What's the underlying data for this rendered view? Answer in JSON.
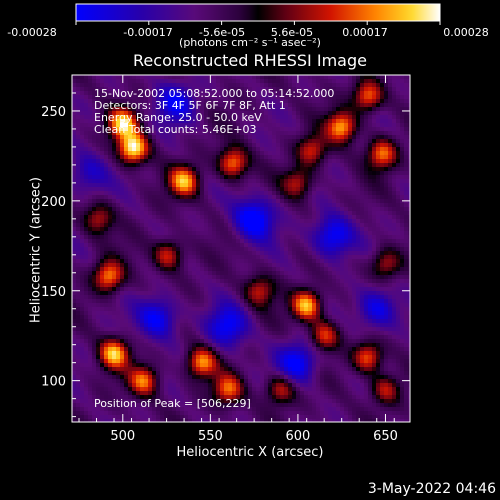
{
  "title": "Reconstructed RHESSI Image",
  "date_stamp": "3-May-2022 04:46",
  "annotations": {
    "time_range": "15-Nov-2002 05:08:52.000 to 05:14:52.000",
    "detectors": "Detectors: 3F 4F 5F 6F 7F 8F, Att 1",
    "energy_range": "Energy Range: 25.0 - 50.0 keV",
    "algorithm": "Clean     Total counts: 5.46E+03",
    "peak": "Position of Peak = [506,229]"
  },
  "colorbar": {
    "title": "(photons cm⁻² s⁻¹ asec⁻²)",
    "tick_labels": [
      "-0.00028",
      "-0.00017",
      "-5.6e-05",
      "5.6e-05",
      "0.00017",
      "0.00028"
    ],
    "range": [
      -0.00028,
      0.00028
    ],
    "colormap": "blue-purple-red-orange-yellow-white"
  },
  "chart_data": {
    "type": "heatmap",
    "title": "Reconstructed RHESSI Image",
    "xlabel": "Heliocentric X (arcsec)",
    "ylabel": "Heliocentric Y (arcsec)",
    "xlim": [
      471,
      664
    ],
    "ylim": [
      77,
      270
    ],
    "xticks": [
      500,
      550,
      600,
      650
    ],
    "yticks": [
      100,
      150,
      200,
      250
    ],
    "hotspots": [
      {
        "x": 506,
        "y": 229,
        "v": 1.0
      },
      {
        "x": 500,
        "y": 243,
        "v": 0.85
      },
      {
        "x": 535,
        "y": 211,
        "v": 0.8
      },
      {
        "x": 563,
        "y": 221,
        "v": 0.75
      },
      {
        "x": 625,
        "y": 241,
        "v": 0.8
      },
      {
        "x": 640,
        "y": 258,
        "v": 0.7
      },
      {
        "x": 648,
        "y": 226,
        "v": 0.7
      },
      {
        "x": 608,
        "y": 228,
        "v": 0.55
      },
      {
        "x": 600,
        "y": 210,
        "v": 0.5
      },
      {
        "x": 492,
        "y": 158,
        "v": 0.75
      },
      {
        "x": 526,
        "y": 170,
        "v": 0.6
      },
      {
        "x": 578,
        "y": 150,
        "v": 0.5
      },
      {
        "x": 605,
        "y": 142,
        "v": 0.9
      },
      {
        "x": 615,
        "y": 125,
        "v": 0.6
      },
      {
        "x": 640,
        "y": 113,
        "v": 0.7
      },
      {
        "x": 650,
        "y": 95,
        "v": 0.5
      },
      {
        "x": 495,
        "y": 115,
        "v": 0.85
      },
      {
        "x": 512,
        "y": 100,
        "v": 0.7
      },
      {
        "x": 545,
        "y": 110,
        "v": 0.75
      },
      {
        "x": 560,
        "y": 95,
        "v": 0.65
      },
      {
        "x": 590,
        "y": 95,
        "v": 0.55
      },
      {
        "x": 486,
        "y": 190,
        "v": 0.5
      },
      {
        "x": 650,
        "y": 165,
        "v": 0.5
      }
    ],
    "coldspots": [
      {
        "x": 575,
        "y": 190,
        "v": -0.7
      },
      {
        "x": 520,
        "y": 135,
        "v": -0.6
      },
      {
        "x": 620,
        "y": 180,
        "v": -0.65
      },
      {
        "x": 600,
        "y": 110,
        "v": -0.6
      },
      {
        "x": 645,
        "y": 140,
        "v": -0.55
      },
      {
        "x": 530,
        "y": 255,
        "v": -0.5
      },
      {
        "x": 560,
        "y": 130,
        "v": -0.55
      },
      {
        "x": 480,
        "y": 215,
        "v": -0.4
      }
    ]
  }
}
